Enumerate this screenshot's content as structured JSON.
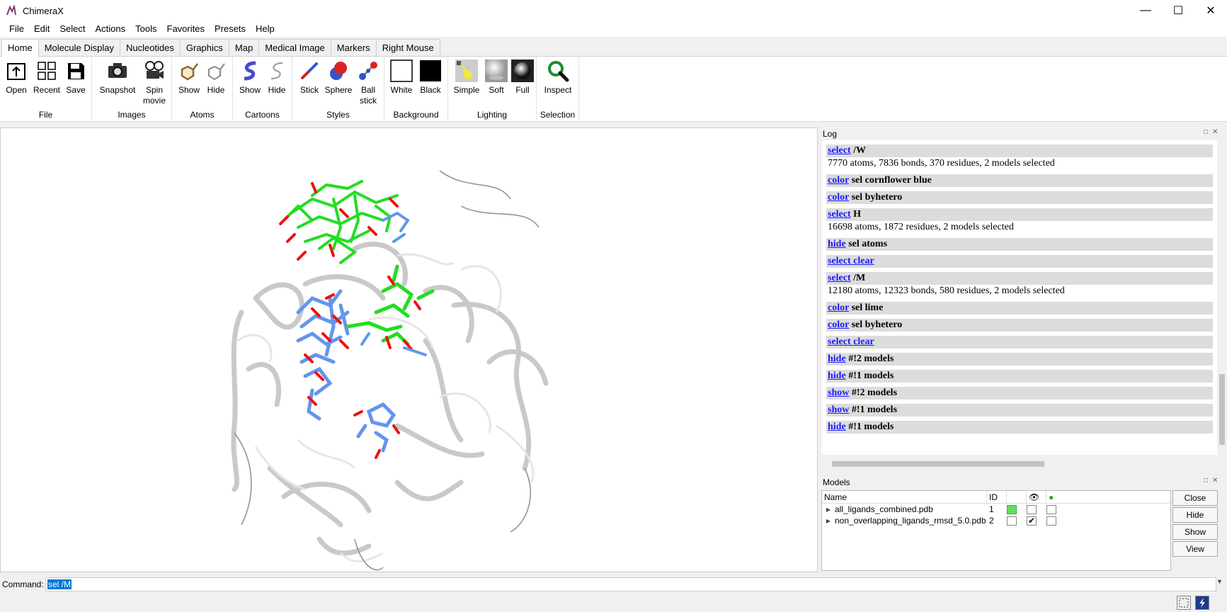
{
  "window": {
    "title": "ChimeraX",
    "controls": {
      "minimize": "—",
      "maximize": "☐",
      "close": "✕"
    }
  },
  "menu": [
    "File",
    "Edit",
    "Select",
    "Actions",
    "Tools",
    "Favorites",
    "Presets",
    "Help"
  ],
  "tabs": [
    "Home",
    "Molecule Display",
    "Nucleotides",
    "Graphics",
    "Map",
    "Medical Image",
    "Markers",
    "Right Mouse"
  ],
  "toolbar": {
    "groups": {
      "file": "File",
      "images": "Images",
      "atoms": "Atoms",
      "cartoons": "Cartoons",
      "styles": "Styles",
      "background": "Background",
      "lighting": "Lighting",
      "selection": "Selection"
    },
    "buttons": {
      "open": "Open",
      "recent": "Recent",
      "save": "Save",
      "snapshot": "Snapshot",
      "spin_line1": "Spin",
      "spin_line2": "movie",
      "atoms_show": "Show",
      "atoms_hide": "Hide",
      "cartoons_show": "Show",
      "cartoons_hide": "Hide",
      "stick": "Stick",
      "sphere": "Sphere",
      "ball_line1": "Ball",
      "ball_line2": "stick",
      "white": "White",
      "black": "Black",
      "simple": "Simple",
      "soft": "Soft",
      "full": "Full",
      "inspect": "Inspect"
    }
  },
  "log": {
    "title": "Log",
    "entries": [
      {
        "cmd": "select",
        "arg": " /W",
        "out": "7770 atoms, 7836 bonds, 370 residues, 2 models selected"
      },
      {
        "cmd": "color",
        "arg": " sel cornflower blue",
        "out": ""
      },
      {
        "cmd": "color",
        "arg": " sel byhetero",
        "out": ""
      },
      {
        "cmd": "select",
        "arg": " H",
        "out": "16698 atoms, 1872 residues, 2 models selected"
      },
      {
        "cmd": "hide",
        "arg": " sel atoms",
        "out": ""
      },
      {
        "cmd": "select clear",
        "arg": "",
        "out": ""
      },
      {
        "cmd": "select",
        "arg": " /M",
        "out": "12180 atoms, 12323 bonds, 580 residues, 2 models selected"
      },
      {
        "cmd": "color",
        "arg": " sel lime",
        "out": ""
      },
      {
        "cmd": "color",
        "arg": " sel byhetero",
        "out": ""
      },
      {
        "cmd": "select clear",
        "arg": "",
        "out": ""
      },
      {
        "cmd": "hide",
        "arg": " #!2 models",
        "out": ""
      },
      {
        "cmd": "hide",
        "arg": " #!1 models",
        "out": ""
      },
      {
        "cmd": "show",
        "arg": " #!2 models",
        "out": ""
      },
      {
        "cmd": "show",
        "arg": " #!1 models",
        "out": ""
      },
      {
        "cmd": "hide",
        "arg": " #!1 models",
        "out": ""
      }
    ]
  },
  "models": {
    "title": "Models",
    "columns": {
      "name": "Name",
      "id": "ID"
    },
    "rows": [
      {
        "name": "all_ligands_combined.pdb",
        "id": "1",
        "color": "#5ee05e",
        "shown": "",
        "selected": ""
      },
      {
        "name": "non_overlapping_ligands_rmsd_5.0.pdb",
        "id": "2",
        "color": "",
        "shown": "✔",
        "selected": ""
      }
    ],
    "buttons": [
      "Close",
      "Hide",
      "Show",
      "View"
    ]
  },
  "command": {
    "label": "Command:",
    "value": "sel /M"
  },
  "colors": {
    "link": "#1a1aff",
    "lime": "#22dd22",
    "cornflower": "#6495ed",
    "hetero_red": "#ee1111"
  }
}
